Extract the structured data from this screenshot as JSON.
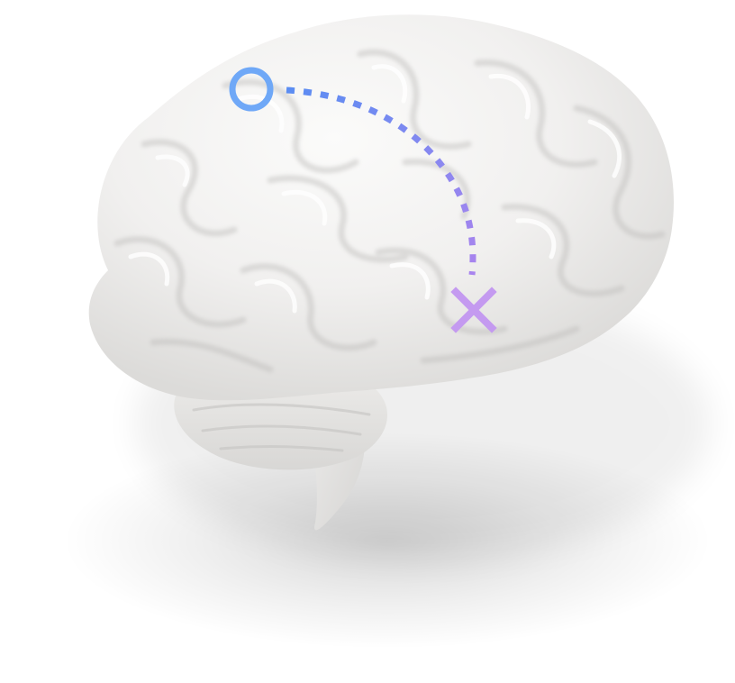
{
  "scene": {
    "subject": "brain-illustration",
    "background_color": "#ffffff",
    "brain_color": "#f2f1f0",
    "brain_shade_color": "#d9d8d6",
    "start_marker": {
      "icon": "ring-icon",
      "color": "#6fa8f7"
    },
    "path": {
      "style": "dotted",
      "gradient_start": "#5b8df2",
      "gradient_end": "#a984ee"
    },
    "end_marker": {
      "icon": "cross-icon",
      "color": "#c49af0"
    }
  }
}
